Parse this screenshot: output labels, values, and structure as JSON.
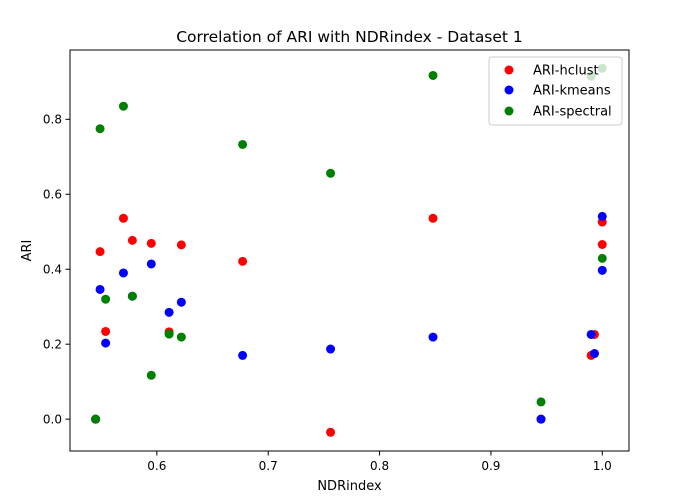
{
  "chart_data": {
    "type": "scatter",
    "title": "Correlation of ARI with NDRindex - Dataset 1",
    "xlabel": "NDRindex",
    "ylabel": "ARI",
    "xlim": [
      0.522,
      1.024
    ],
    "ylim": [
      -0.085,
      0.985
    ],
    "xticks": [
      0.6,
      0.7,
      0.8,
      0.9,
      1.0
    ],
    "xtick_labels": [
      "0.6",
      "0.7",
      "0.8",
      "0.9",
      "1.0"
    ],
    "yticks": [
      0.0,
      0.2,
      0.4,
      0.6,
      0.8
    ],
    "ytick_labels": [
      "0.0",
      "0.2",
      "0.4",
      "0.6",
      "0.8"
    ],
    "grid": false,
    "legend_position": "top-right",
    "series": [
      {
        "name": "ARI-hclust",
        "color": "#ff0000",
        "x": [
          0.545,
          0.549,
          0.554,
          0.57,
          0.578,
          0.595,
          0.611,
          0.622,
          0.677,
          0.756,
          0.848,
          0.945,
          0.99,
          0.993,
          1.0,
          1.0
        ],
        "y": [
          0.0,
          0.447,
          0.234,
          0.536,
          0.477,
          0.469,
          0.233,
          0.465,
          0.421,
          -0.035,
          0.536,
          0.0,
          0.17,
          0.226,
          0.526,
          0.466
        ]
      },
      {
        "name": "ARI-kmeans",
        "color": "#0000ff",
        "x": [
          0.545,
          0.549,
          0.554,
          0.57,
          0.578,
          0.595,
          0.611,
          0.622,
          0.677,
          0.756,
          0.848,
          0.945,
          0.99,
          0.993,
          1.0,
          1.0
        ],
        "y": [
          0.0,
          0.346,
          0.203,
          0.39,
          0.328,
          0.414,
          0.285,
          0.312,
          0.17,
          0.187,
          0.219,
          0.0,
          0.226,
          0.175,
          0.541,
          0.397
        ]
      },
      {
        "name": "ARI-spectral",
        "color": "#008000",
        "x": [
          0.545,
          0.549,
          0.554,
          0.57,
          0.578,
          0.595,
          0.611,
          0.622,
          0.677,
          0.756,
          0.848,
          0.945,
          0.99,
          1.0,
          1.0
        ],
        "y": [
          0.0,
          0.775,
          0.32,
          0.835,
          0.328,
          0.117,
          0.227,
          0.219,
          0.733,
          0.656,
          0.917,
          0.046,
          0.915,
          0.936,
          0.429
        ]
      }
    ]
  }
}
